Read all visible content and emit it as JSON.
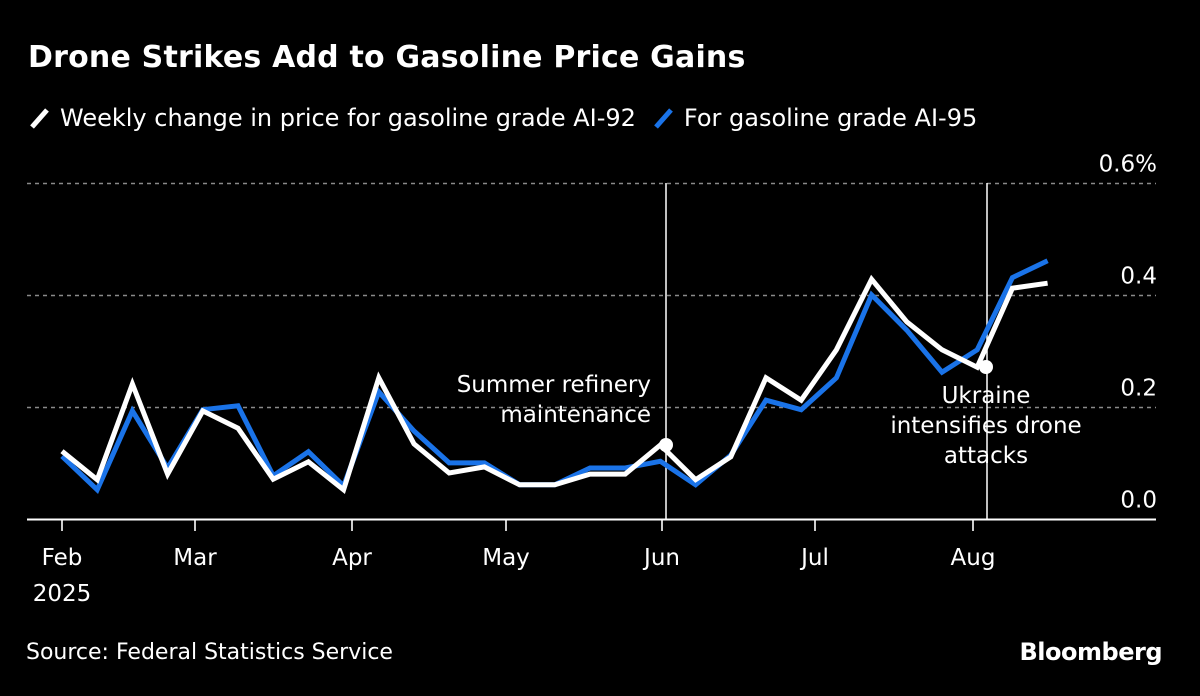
{
  "header": {
    "title": "Drone Strikes Add to Gasoline Price Gains"
  },
  "legend": [
    {
      "label": "Weekly change in price for gasoline grade AI-92",
      "color": "#ffffff"
    },
    {
      "label": "For gasoline grade AI-95",
      "color": "#1a73e8"
    }
  ],
  "footer": {
    "source": "Source: Federal Statistics Service",
    "brand": "Bloomberg"
  },
  "chart_data": {
    "type": "line",
    "title": "Drone Strikes Add to Gasoline Price Gains",
    "xlabel": "",
    "ylabel": "",
    "ylim": [
      0,
      0.6
    ],
    "yticks": [
      0.0,
      0.2,
      0.4,
      0.6
    ],
    "ytick_labels": [
      "0.0",
      "0.2",
      "0.4",
      "0.6%"
    ],
    "grid": true,
    "legend_position": "top-left",
    "x_start_week_index": 0,
    "xtick_labels": [
      {
        "label": "Feb",
        "sub": "2025",
        "week": 0
      },
      {
        "label": "Mar",
        "sub": "",
        "week": 3.77
      },
      {
        "label": "Apr",
        "sub": "",
        "week": 8.2
      },
      {
        "label": "May",
        "sub": "",
        "week": 12.6
      },
      {
        "label": "Jun",
        "sub": "",
        "week": 17.05
      },
      {
        "label": "Jul",
        "sub": "",
        "week": 21.4
      },
      {
        "label": "Aug",
        "sub": "",
        "week": 25.88
      }
    ],
    "series": [
      {
        "name": "Weekly change in price for gasoline grade AI-92",
        "color": "#ffffff",
        "values": [
          0.122,
          0.071,
          0.242,
          0.081,
          0.194,
          0.163,
          0.072,
          0.103,
          0.053,
          0.253,
          0.135,
          0.083,
          0.094,
          0.062,
          0.062,
          0.081,
          0.081,
          0.133,
          0.071,
          0.112,
          0.253,
          0.213,
          0.303,
          0.429,
          0.353,
          0.303,
          0.272,
          0.413,
          0.422
        ]
      },
      {
        "name": "For gasoline grade AI-95",
        "color": "#1a73e8",
        "values": [
          0.113,
          0.053,
          0.194,
          0.092,
          0.196,
          0.203,
          0.078,
          0.121,
          0.06,
          0.228,
          0.158,
          0.101,
          0.101,
          0.062,
          0.062,
          0.092,
          0.092,
          0.104,
          0.062,
          0.115,
          0.213,
          0.196,
          0.253,
          0.401,
          0.338,
          0.263,
          0.303,
          0.432,
          0.462
        ]
      }
    ],
    "annotations": [
      {
        "lines": [
          "Summer refinery",
          "maintenance"
        ],
        "week": 17.1,
        "marker_series": 0,
        "align": "right"
      },
      {
        "lines": [
          "Ukraine",
          "intensifies drone",
          "attacks"
        ],
        "week": 26,
        "marker_series": 0,
        "align": "center"
      }
    ]
  }
}
